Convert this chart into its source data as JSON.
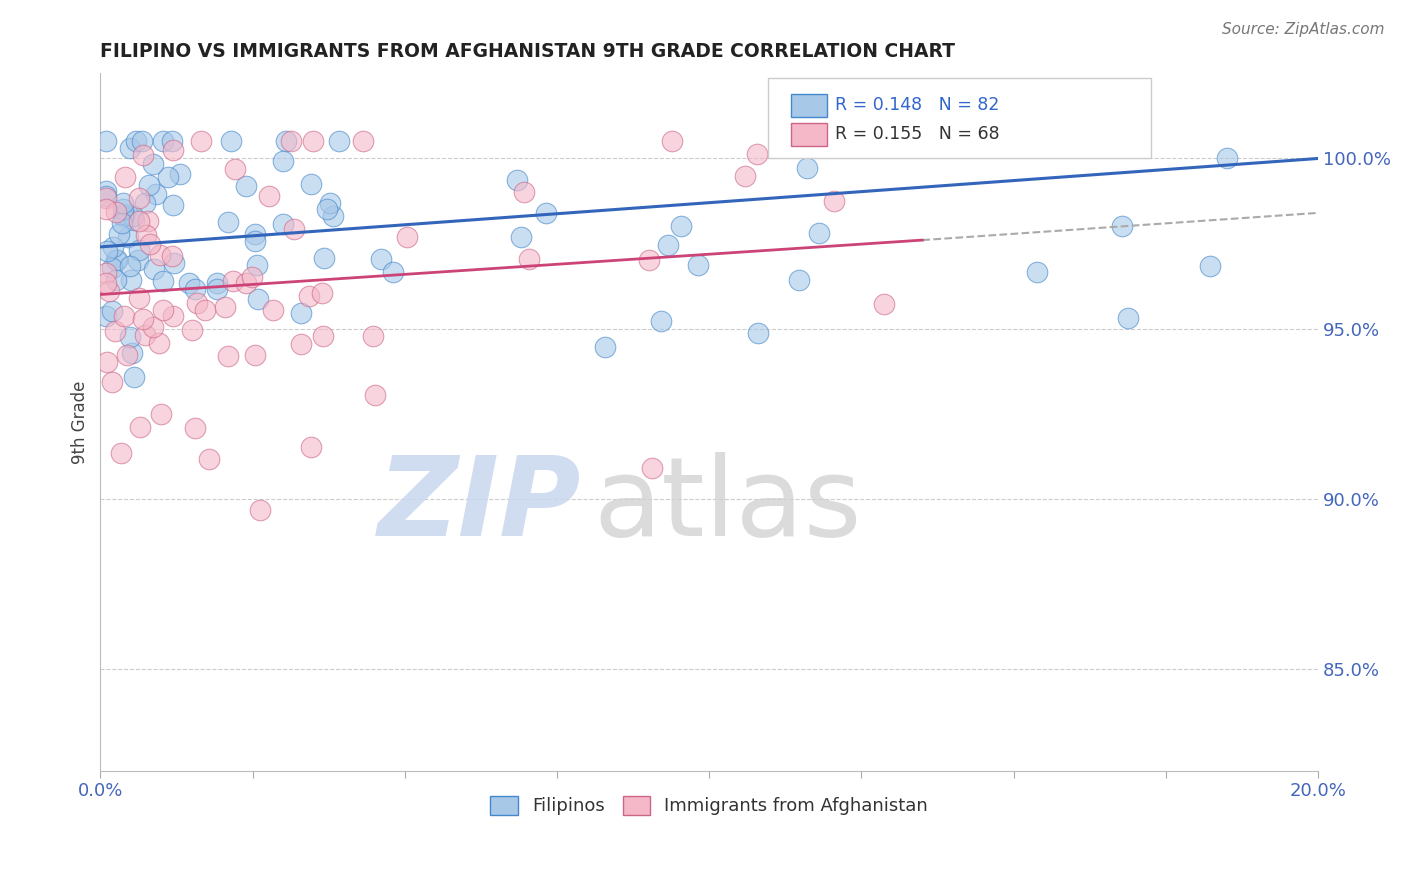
{
  "title": "FILIPINO VS IMMIGRANTS FROM AFGHANISTAN 9TH GRADE CORRELATION CHART",
  "source": "Source: ZipAtlas.com",
  "ylabel": "9th Grade",
  "xlim": [
    0.0,
    0.2
  ],
  "ylim": [
    0.82,
    1.025
  ],
  "x_ticks": [
    0.0,
    0.025,
    0.05,
    0.075,
    0.1,
    0.125,
    0.15,
    0.175,
    0.2
  ],
  "y_ticks": [
    0.85,
    0.9,
    0.95,
    1.0
  ],
  "y_tick_labels": [
    "85.0%",
    "90.0%",
    "95.0%",
    "100.0%"
  ],
  "legend_r1": "R = 0.148",
  "legend_n1": "N = 82",
  "legend_r2": "R = 0.155",
  "legend_n2": "N = 68",
  "blue_fill": "#a8c8e8",
  "blue_edge": "#4488cc",
  "pink_fill": "#f4b8c8",
  "pink_edge": "#cc6688",
  "blue_line": "#3366bb",
  "pink_line": "#cc4477",
  "dash_line": "#aaaaaa",
  "title_color": "#222222",
  "source_color": "#777777",
  "tick_color": "#4466bb",
  "label_color": "#444444",
  "grid_color": "#cccccc",
  "legend_text_blue": "#3366cc",
  "legend_text_dark": "#333333",
  "blue_trend_x": [
    0.0,
    0.2
  ],
  "blue_trend_y": [
    0.974,
    1.0
  ],
  "pink_trend_x": [
    0.0,
    0.135
  ],
  "pink_trend_y": [
    0.96,
    0.976
  ],
  "dash_trend_x": [
    0.135,
    0.2
  ],
  "dash_trend_y": [
    0.976,
    0.984
  ],
  "wm_zip_color": "#c8d8ee",
  "wm_atlas_color": "#d0d0d0"
}
